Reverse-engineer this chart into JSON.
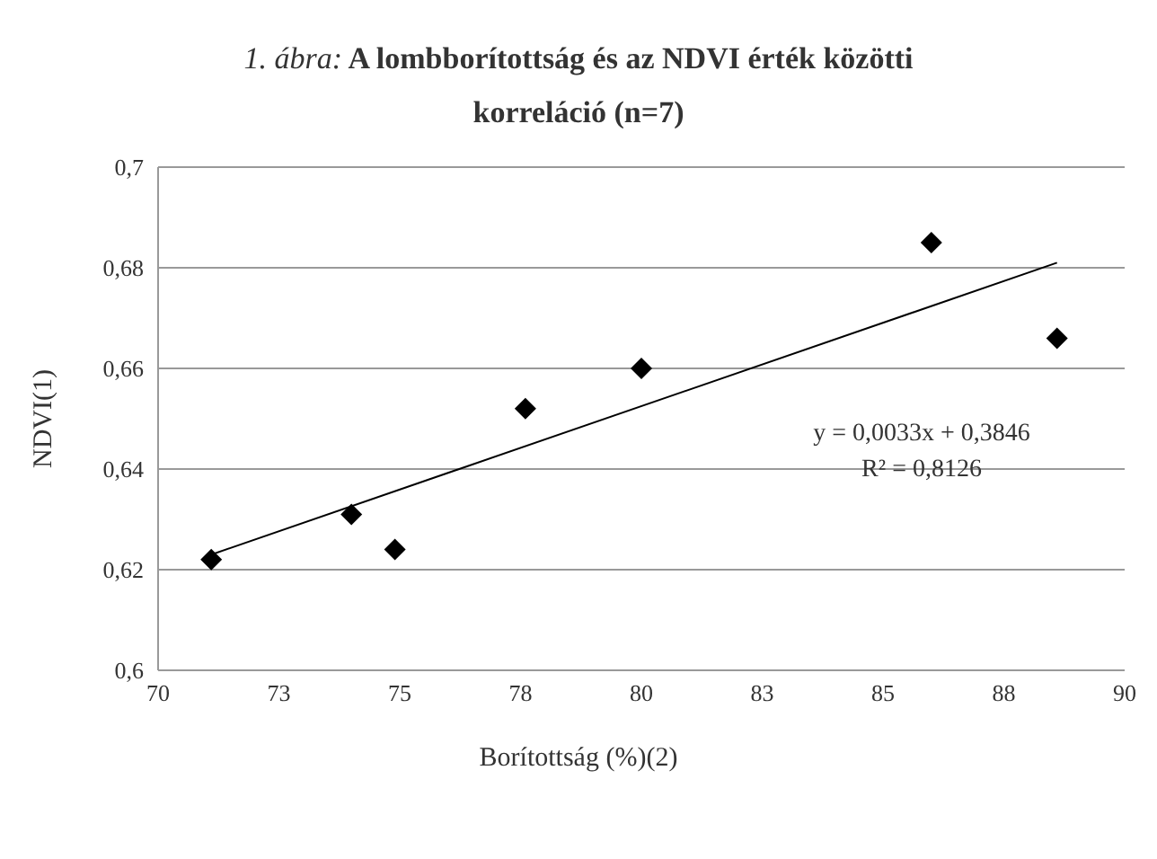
{
  "chart_data": {
    "type": "scatter",
    "title": "1. ábra: A lombborítottság és az NDVI érték közötti korreláció (n=7)",
    "xlabel": "Borítottság (%)(2)",
    "ylabel": "NDVI(1)",
    "series": [
      {
        "color": "#000000",
        "marker": "diamond",
        "x": [
          71.1,
          74.0,
          74.9,
          77.6,
          80.0,
          86.0,
          88.6
        ],
        "values": [
          0.622,
          0.631,
          0.624,
          0.652,
          0.66,
          0.685,
          0.666
        ]
      },
      {
        "type": "line",
        "color": "#000000",
        "marker": "none",
        "x": [
          71.1,
          88.6
        ],
        "values": [
          0.623,
          0.681
        ]
      }
    ],
    "xlim": [
      70,
      90
    ],
    "xticks": [
      70,
      {
        "value": 72.5,
        "label": "73"
      },
      75,
      {
        "value": 77.5,
        "label": "78"
      },
      80,
      {
        "value": 82.5,
        "label": "83"
      },
      85,
      {
        "value": 87.5,
        "label": "88"
      },
      90
    ],
    "ylim": [
      0.6,
      0.7
    ],
    "yticks": [
      {
        "value": 0.6,
        "label": "0,6"
      },
      {
        "value": 0.62,
        "label": "0,62"
      },
      {
        "value": 0.64,
        "label": "0,64"
      },
      {
        "value": 0.66,
        "label": "0,66"
      },
      {
        "value": 0.68,
        "label": "0,68"
      },
      {
        "value": 0.7,
        "label": "0,7"
      }
    ],
    "grid": "y",
    "legend": false,
    "annotations": [
      "y = 0,0033x + 0,3846",
      "R² = 0,8126"
    ]
  }
}
